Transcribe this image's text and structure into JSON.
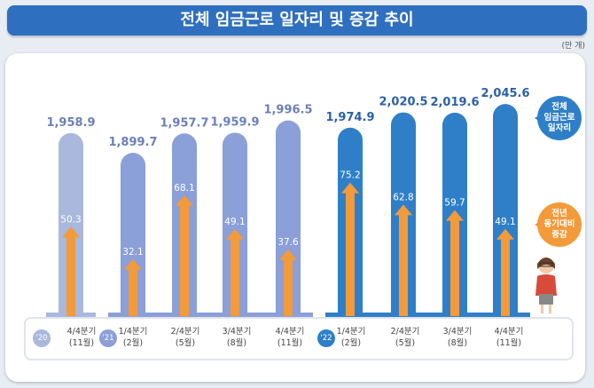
{
  "title": "전체 임금근로 일자리 및 증감 추이",
  "unit": "(만 개)",
  "legend": {
    "total": "전체\n임금근로\n일자리",
    "change": "전년\n동기대비\n증감"
  },
  "colors": {
    "y2020": "#a9b8dc",
    "y2021": "#8b9fd8",
    "y2022": "#2f7fc8",
    "arrow": "#f39a3a",
    "title": "#2f6fc0"
  },
  "years": [
    "'20년",
    "'21년",
    "'22년"
  ],
  "chart_data": {
    "type": "bar",
    "categories": [
      "4/4분기\n(11월)",
      "1/4분기\n(2월)",
      "2/4분기\n(5월)",
      "3/4분기\n(8월)",
      "4/4분기\n(11월)",
      "1/4분기\n(2월)",
      "2/4분기\n(5월)",
      "3/4분기\n(8월)",
      "4/4분기\n(11월)"
    ],
    "year_of": [
      0,
      1,
      1,
      1,
      1,
      2,
      2,
      2,
      2
    ],
    "series": [
      {
        "name": "전체 임금근로 일자리",
        "values": [
          1958.9,
          1899.7,
          1957.7,
          1959.9,
          1996.5,
          1974.9,
          2020.5,
          2019.6,
          2045.6
        ],
        "labels": [
          "1,958.9",
          "1,899.7",
          "1,957.7",
          "1,959.9",
          "1,996.5",
          "1,974.9",
          "2,020.5",
          "2,019.6",
          "2,045.6"
        ]
      },
      {
        "name": "전년 동기대비 증감",
        "values": [
          50.3,
          32.1,
          68.1,
          49.1,
          37.6,
          75.2,
          62.8,
          59.7,
          49.1
        ],
        "labels": [
          "50.3",
          "32.1",
          "68.1",
          "49.1",
          "37.6",
          "75.2",
          "62.8",
          "59.7",
          "49.1"
        ]
      }
    ]
  }
}
